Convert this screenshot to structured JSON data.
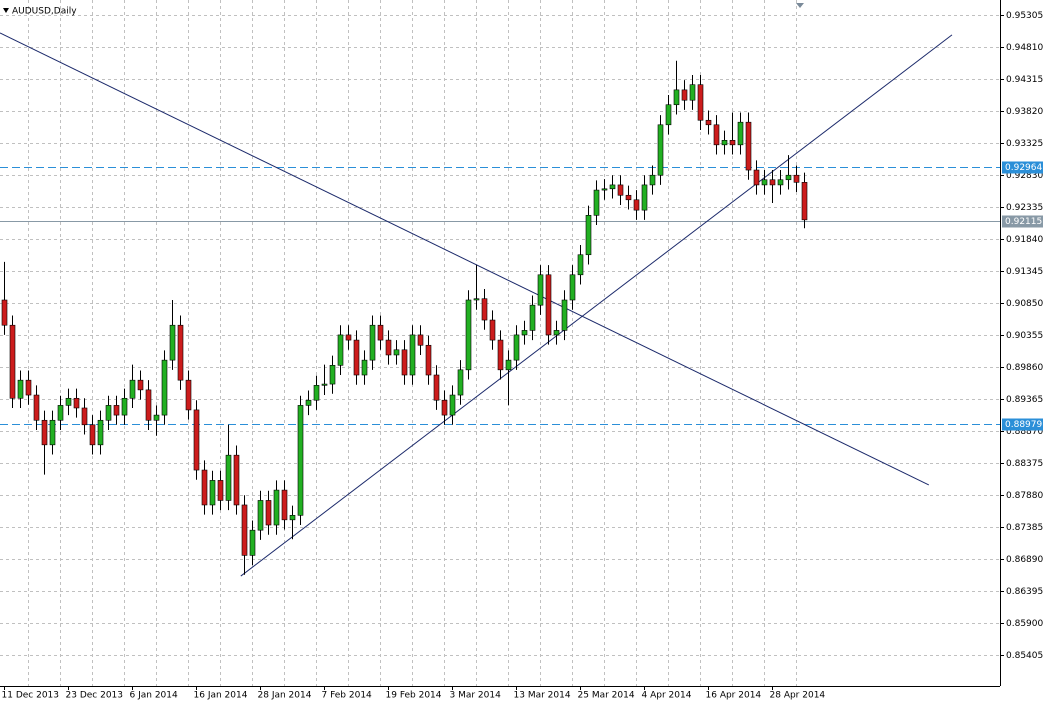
{
  "chart_data": {
    "type": "candlestick",
    "title": "AUDUSD,Daily",
    "categories": [
      "11 Dec 2013",
      null,
      null,
      null,
      null,
      null,
      null,
      null,
      "23 Dec 2013",
      null,
      null,
      null,
      null,
      null,
      null,
      null,
      "6 Jan 2014",
      null,
      null,
      null,
      null,
      null,
      null,
      null,
      "16 Jan 2014",
      null,
      null,
      null,
      null,
      null,
      null,
      null,
      "28 Jan 2014",
      null,
      null,
      null,
      null,
      null,
      null,
      null,
      "7 Feb 2014",
      null,
      null,
      null,
      null,
      null,
      null,
      null,
      "19 Feb 2014",
      null,
      null,
      null,
      null,
      null,
      null,
      null,
      "3 Mar 2014",
      null,
      null,
      null,
      null,
      null,
      null,
      null,
      "13 Mar 2014",
      null,
      null,
      null,
      null,
      null,
      null,
      null,
      "25 Mar 2014",
      null,
      null,
      null,
      null,
      null,
      null,
      null,
      "4 Apr 2014",
      null,
      null,
      null,
      null,
      null,
      null,
      null,
      "16 Apr 2014",
      null,
      null,
      null,
      null,
      null,
      null,
      null,
      "28 Apr 2014",
      null,
      null,
      null,
      null
    ],
    "open": [
      0.909,
      0.9051,
      0.8938,
      0.8966,
      0.8943,
      0.8904,
      0.8866,
      0.8904,
      0.8927,
      0.8938,
      0.8923,
      0.8897,
      0.8866,
      0.8904,
      0.8927,
      0.8912,
      0.8938,
      0.8966,
      0.8951,
      0.8904,
      0.8912,
      0.8997,
      0.9051,
      0.8966,
      0.892,
      0.8827,
      0.8773,
      0.8811,
      0.878,
      0.885,
      0.8773,
      0.8695,
      0.8734,
      0.878,
      0.8742,
      0.8796,
      0.875,
      0.8757,
      0.8927,
      0.8935,
      0.8958,
      0.896,
      0.8989,
      0.9036,
      0.9028,
      0.8974,
      0.8997,
      0.9051,
      0.9028,
      0.9005,
      0.9013,
      0.8974,
      0.9036,
      0.902,
      0.8974,
      0.8935,
      0.8912,
      0.8943,
      0.8982,
      0.909,
      0.9092,
      0.9059,
      0.9028,
      0.8982,
      0.8997,
      0.9036,
      0.9043,
      0.9082,
      0.9129,
      0.9036,
      0.9043,
      0.909,
      0.9129,
      0.916,
      0.9221,
      0.926,
      0.9262,
      0.9268,
      0.9252,
      0.9245,
      0.9229,
      0.9268,
      0.9283,
      0.9361,
      0.9392,
      0.9415,
      0.9399,
      0.9423,
      0.9368,
      0.9361,
      0.933,
      0.9337,
      0.933,
      0.9365,
      0.9291,
      0.9268,
      0.9276,
      0.9268,
      0.9276,
      0.9283,
      0.9272
    ],
    "high": [
      0.9149,
      0.9066,
      0.8981,
      0.8981,
      0.8958,
      0.8919,
      0.8919,
      0.8942,
      0.8953,
      0.8953,
      0.8938,
      0.8912,
      0.8919,
      0.8942,
      0.8942,
      0.8953,
      0.899,
      0.8981,
      0.8966,
      0.8927,
      0.9012,
      0.909,
      0.9066,
      0.8981,
      0.8935,
      0.8842,
      0.8826,
      0.8826,
      0.8897,
      0.8865,
      0.8788,
      0.8749,
      0.8795,
      0.8795,
      0.8811,
      0.8811,
      0.8772,
      0.8942,
      0.895,
      0.8973,
      0.899,
      0.9004,
      0.9051,
      0.9051,
      0.9043,
      0.9012,
      0.9066,
      0.9066,
      0.9043,
      0.9028,
      0.9028,
      0.9051,
      0.9051,
      0.9035,
      0.8989,
      0.895,
      0.8958,
      0.8997,
      0.9105,
      0.9144,
      0.9107,
      0.9074,
      0.9043,
      0.9012,
      0.9051,
      0.9058,
      0.9097,
      0.9144,
      0.9144,
      0.9058,
      0.9105,
      0.9144,
      0.9175,
      0.9236,
      0.9275,
      0.9277,
      0.9283,
      0.9283,
      0.9267,
      0.926,
      0.9283,
      0.9298,
      0.9376,
      0.9407,
      0.946,
      0.943,
      0.9438,
      0.9438,
      0.9383,
      0.9376,
      0.9352,
      0.938,
      0.938,
      0.938,
      0.9306,
      0.9291,
      0.9291,
      0.9291,
      0.9314,
      0.9298,
      0.9287
    ],
    "low": [
      0.9036,
      0.8923,
      0.8923,
      0.8928,
      0.8889,
      0.882,
      0.8851,
      0.8889,
      0.8912,
      0.8908,
      0.8882,
      0.8851,
      0.8851,
      0.8889,
      0.8897,
      0.8897,
      0.8923,
      0.8936,
      0.8889,
      0.888,
      0.8897,
      0.8982,
      0.8951,
      0.8905,
      0.8812,
      0.8758,
      0.8758,
      0.8765,
      0.8765,
      0.8758,
      0.8665,
      0.868,
      0.8719,
      0.8727,
      0.8727,
      0.8735,
      0.872,
      0.8742,
      0.8912,
      0.892,
      0.8943,
      0.8945,
      0.8974,
      0.9013,
      0.8959,
      0.8959,
      0.8982,
      0.9013,
      0.899,
      0.899,
      0.8959,
      0.8959,
      0.9005,
      0.8959,
      0.892,
      0.8897,
      0.8897,
      0.8928,
      0.8967,
      0.9075,
      0.9044,
      0.9013,
      0.8967,
      0.8927,
      0.8982,
      0.9021,
      0.9028,
      0.9067,
      0.9021,
      0.9021,
      0.9028,
      0.9075,
      0.9114,
      0.9145,
      0.9206,
      0.9245,
      0.9247,
      0.9237,
      0.923,
      0.9214,
      0.9214,
      0.9253,
      0.9268,
      0.9346,
      0.9377,
      0.9384,
      0.9384,
      0.9353,
      0.9346,
      0.9315,
      0.9315,
      0.9315,
      0.9315,
      0.9276,
      0.9253,
      0.9253,
      0.924,
      0.9253,
      0.9261,
      0.9257,
      0.9201
    ],
    "close": [
      0.9051,
      0.8938,
      0.8966,
      0.8943,
      0.8904,
      0.8866,
      0.8904,
      0.8927,
      0.8938,
      0.8923,
      0.8897,
      0.8866,
      0.8904,
      0.8927,
      0.8912,
      0.8938,
      0.8966,
      0.8951,
      0.8904,
      0.8912,
      0.8997,
      0.9051,
      0.8966,
      0.892,
      0.8827,
      0.8773,
      0.8811,
      0.878,
      0.885,
      0.8773,
      0.8695,
      0.8734,
      0.878,
      0.8742,
      0.8796,
      0.875,
      0.8757,
      0.8927,
      0.8935,
      0.8958,
      0.896,
      0.8989,
      0.9036,
      0.9028,
      0.8974,
      0.8997,
      0.9051,
      0.9028,
      0.9005,
      0.9013,
      0.8974,
      0.9036,
      0.902,
      0.8974,
      0.8935,
      0.8912,
      0.8943,
      0.8982,
      0.909,
      0.9092,
      0.9059,
      0.9028,
      0.8982,
      0.8997,
      0.9036,
      0.9043,
      0.9082,
      0.9129,
      0.9036,
      0.9043,
      0.909,
      0.9129,
      0.916,
      0.9221,
      0.926,
      0.9262,
      0.9268,
      0.9252,
      0.9245,
      0.9229,
      0.9268,
      0.9283,
      0.9361,
      0.9392,
      0.9415,
      0.9399,
      0.9423,
      0.9368,
      0.9361,
      0.933,
      0.9337,
      0.933,
      0.9365,
      0.9291,
      0.9268,
      0.9276,
      0.9268,
      0.9276,
      0.9283,
      0.9272,
      0.9214
    ],
    "up_color": "#22b022",
    "down_color": "#cc1c1c",
    "xlim": [
      -0.5,
      124.5
    ],
    "ylim": [
      0.8493,
      0.9554
    ],
    "yticks": [
      0.95305,
      {
        "value": 0.9481,
        "label": "0.94810"
      },
      0.94315,
      {
        "value": 0.9382,
        "label": "0.93820"
      },
      0.93325,
      {
        "value": 0.9283,
        "label": "0.92830"
      },
      0.92335,
      {
        "value": 0.9184,
        "label": "0.91840"
      },
      0.91345,
      {
        "value": 0.9085,
        "label": "0.90850"
      },
      0.90355,
      {
        "value": 0.8986,
        "label": "0.89860"
      },
      0.89365,
      {
        "value": 0.8887,
        "label": "0.88870"
      },
      0.88375,
      {
        "value": 0.8788,
        "label": "0.87880"
      },
      0.87385,
      {
        "value": 0.8689,
        "label": "0.86890"
      },
      0.86395,
      {
        "value": 0.859,
        "label": "0.85900"
      },
      0.85405
    ],
    "grid": true,
    "levels": [
      {
        "value": 0.92964,
        "style": "dashed",
        "color": "#2b8fd8"
      },
      {
        "value": 0.88979,
        "style": "dashed",
        "color": "#2b8fd8"
      },
      {
        "value": 0.92115,
        "style": "solid",
        "color": "#8899a6"
      }
    ],
    "trendlines": [
      {
        "x": [
          -0.5,
          115.6
        ],
        "y": [
          0.9503,
          0.8804
        ],
        "color": "#1c2a6b"
      },
      {
        "x": [
          29.6,
          118.5
        ],
        "y": [
          0.8663,
          0.95
        ],
        "color": "#1c2a6b"
      }
    ]
  }
}
